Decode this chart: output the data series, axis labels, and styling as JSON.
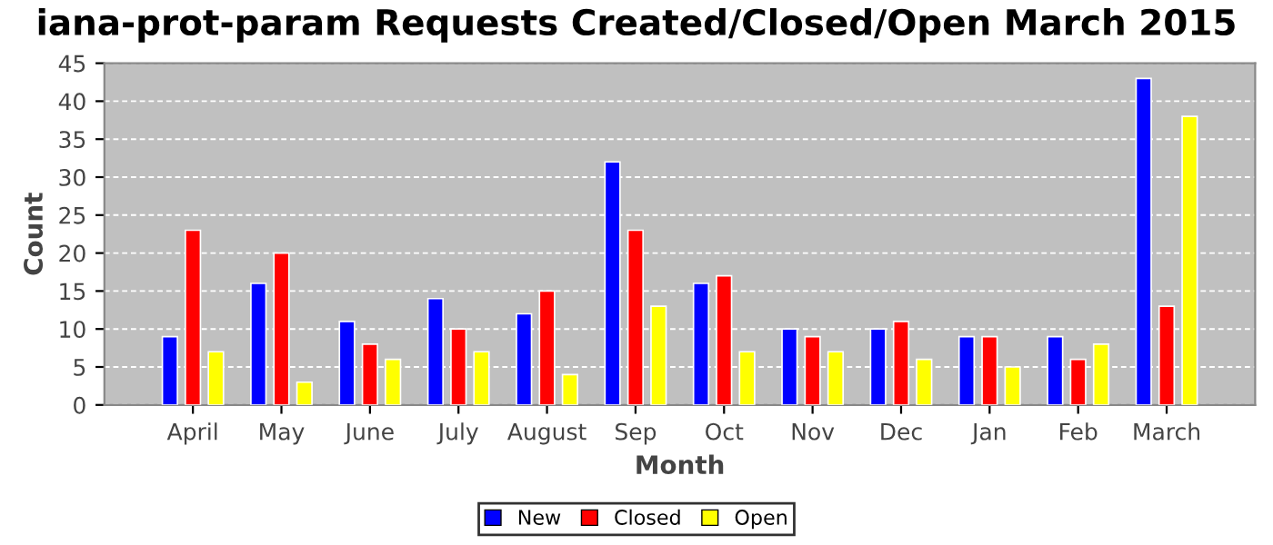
{
  "chart_data": {
    "type": "bar",
    "title": "iana-prot-param Requests Created/Closed/Open March 2015",
    "xlabel": "Month",
    "ylabel": "Count",
    "categories": [
      "April",
      "May",
      "June",
      "July",
      "August",
      "Sep",
      "Oct",
      "Nov",
      "Dec",
      "Jan",
      "Feb",
      "March"
    ],
    "series": [
      {
        "name": "New",
        "color": "#0000ff",
        "values": [
          9,
          16,
          11,
          14,
          12,
          32,
          16,
          10,
          10,
          9,
          9,
          43
        ]
      },
      {
        "name": "Closed",
        "color": "#ff0000",
        "values": [
          23,
          20,
          8,
          10,
          15,
          23,
          17,
          9,
          11,
          9,
          6,
          13
        ]
      },
      {
        "name": "Open",
        "color": "#ffff00",
        "values": [
          7,
          3,
          6,
          7,
          4,
          13,
          7,
          7,
          6,
          5,
          8,
          38
        ]
      }
    ],
    "ylim": [
      0,
      45
    ],
    "yticks": [
      0,
      5,
      10,
      15,
      20,
      25,
      30,
      35,
      40,
      45
    ],
    "grid": "y",
    "legend": "bottom"
  }
}
